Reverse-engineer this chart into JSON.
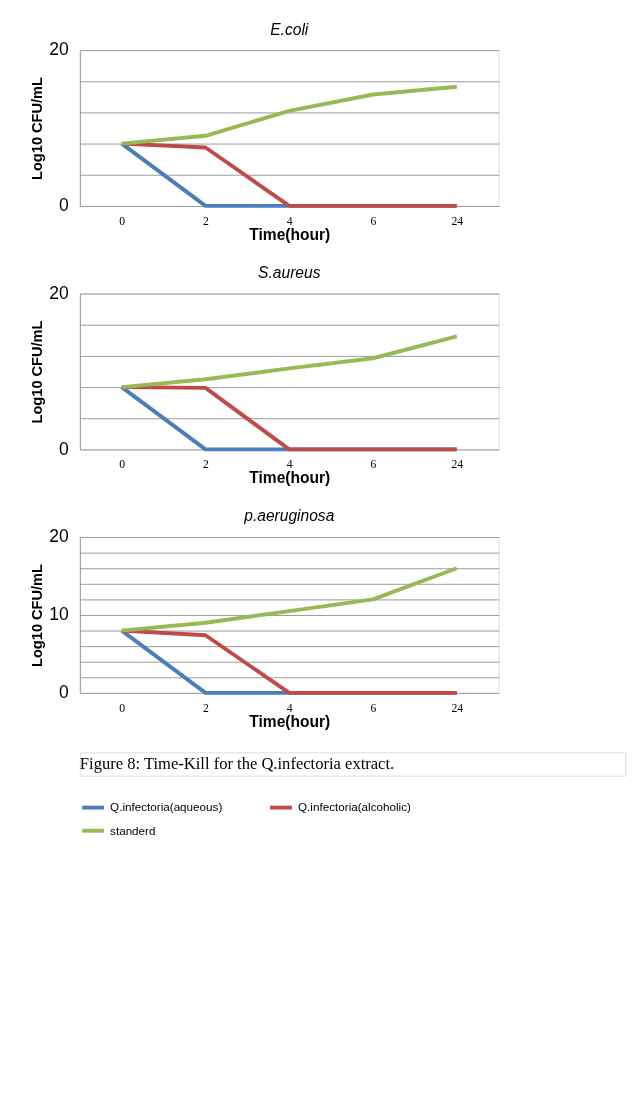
{
  "chart_data": [
    {
      "type": "line",
      "title": "E.coli",
      "xlabel": "Time(hour)",
      "ylabel": "Log10 CFU/mL",
      "categories": [
        "0",
        "2",
        "4",
        "6",
        "24"
      ],
      "ylim": [
        0,
        20
      ],
      "yticks": [
        0,
        {
          "value": 4,
          "label": null
        },
        {
          "value": 8,
          "label": null
        },
        {
          "value": 12,
          "label": null
        },
        {
          "value": 16,
          "label": null
        },
        20
      ],
      "grid": "y",
      "legend": "bottom",
      "marker": "none",
      "line_style": "solid",
      "series": [
        {
          "name": "Q.infectoria(aqueous)",
          "color": "#4a7ebb",
          "values": [
            8,
            0,
            0,
            0,
            0
          ]
        },
        {
          "name": "Q.infectoria(alcoholic)",
          "color": "#be4b48",
          "values": [
            8,
            7.5,
            0,
            0,
            0
          ]
        },
        {
          "name": "standerd",
          "color": "#98b954",
          "values": [
            8,
            9,
            12.2,
            14.3,
            15.3
          ]
        }
      ]
    },
    {
      "type": "line",
      "title": "S.aureus",
      "xlabel": "Time(hour)",
      "ylabel": "Log10 CFU/mL",
      "categories": [
        "0",
        "2",
        "4",
        "6",
        "24"
      ],
      "ylim": [
        0,
        20
      ],
      "yticks": [
        0,
        {
          "value": 4,
          "label": null
        },
        {
          "value": 8,
          "label": null
        },
        {
          "value": 12,
          "label": null
        },
        {
          "value": 16,
          "label": null
        },
        20
      ],
      "grid": "y",
      "legend": "bottom",
      "marker": "none",
      "line_style": "solid",
      "series": [
        {
          "name": "Q.infectoria(aqueous)",
          "color": "#4a7ebb",
          "values": [
            8,
            0,
            0,
            0,
            0
          ]
        },
        {
          "name": "Q.infectoria(alcoholic)",
          "color": "#be4b48",
          "values": [
            8,
            7.9,
            0,
            0,
            0
          ]
        },
        {
          "name": "standerd",
          "color": "#98b954",
          "values": [
            8,
            9,
            10.4,
            11.7,
            14.5
          ]
        }
      ]
    },
    {
      "type": "line",
      "title": "p.aeruginosa",
      "xlabel": "Time(hour)",
      "ylabel": "Log10 CFU/mL",
      "categories": [
        "0",
        "2",
        "4",
        "6",
        "24"
      ],
      "ylim": [
        0,
        20
      ],
      "yticks": [
        0,
        {
          "value": 2,
          "label": null
        },
        {
          "value": 4,
          "label": null
        },
        {
          "value": 6,
          "label": null
        },
        {
          "value": 8,
          "label": null
        },
        10,
        {
          "value": 12,
          "label": null
        },
        {
          "value": 14,
          "label": null
        },
        {
          "value": 16,
          "label": null
        },
        {
          "value": 18,
          "label": null
        },
        20
      ],
      "grid": "y",
      "legend": "bottom",
      "marker": "none",
      "line_style": "solid",
      "annotations": [
        "Figure 8: Time-Kill for the Q.infectoria extract."
      ],
      "series": [
        {
          "name": "Q.infectoria(aqueous)",
          "color": "#4a7ebb",
          "values": [
            8,
            0,
            0,
            0,
            0
          ]
        },
        {
          "name": "Q.infectoria(alcoholic)",
          "color": "#be4b48",
          "values": [
            8,
            7.4,
            0,
            0,
            0
          ]
        },
        {
          "name": "standerd",
          "color": "#98b954",
          "values": [
            8,
            9,
            10.5,
            12,
            16
          ]
        }
      ]
    }
  ]
}
